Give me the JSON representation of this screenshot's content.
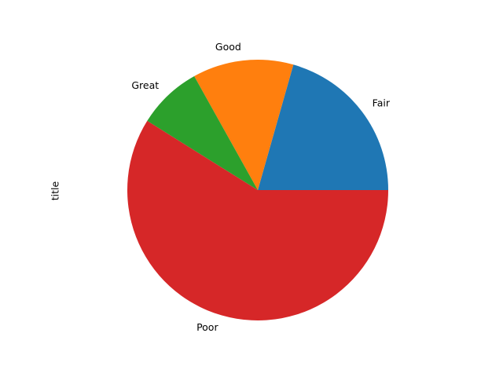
{
  "chart_data": {
    "type": "pie",
    "ylabel": "title",
    "start_angle_deg": 0,
    "direction": "counterclockwise",
    "slices": [
      {
        "label": "Fair",
        "value": 20.6,
        "color": "#1f77b4"
      },
      {
        "label": "Good",
        "value": 12.5,
        "color": "#ff7f0e"
      },
      {
        "label": "Great",
        "value": 8.0,
        "color": "#2ca02c"
      },
      {
        "label": "Poor",
        "value": 58.9,
        "color": "#d62728"
      }
    ]
  }
}
